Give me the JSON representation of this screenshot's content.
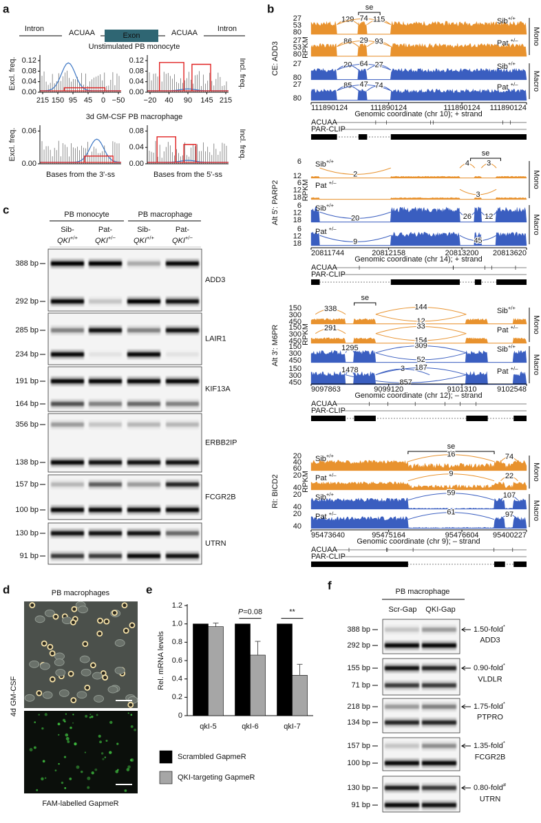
{
  "figure": {
    "a": {
      "label": "a",
      "model": [
        "Intron",
        "ACUAA",
        "Exon",
        "ACUAA",
        "Intron"
      ],
      "rows": [
        "Unstimulated PB monocyte",
        "3d GM-CSF PB macrophage"
      ],
      "y_left": "Excl. freq.",
      "y_right": "Incl. freq.",
      "yticks": [
        [
          "0.00",
          "0.04",
          "0.08",
          "0.12"
        ],
        [
          "0.00",
          "0.04",
          "0.08",
          "0.12"
        ],
        [
          "0.00",
          "0.06"
        ],
        [
          "0.00",
          "0.04",
          "0.08"
        ]
      ],
      "xticks": [
        [
          "215",
          "150",
          "95",
          "45",
          "0",
          "−50"
        ],
        [
          "−20",
          "40",
          "90",
          "145",
          "215"
        ]
      ],
      "xlabels": [
        "Bases from the 3'-ss",
        "Bases from the 5'-ss"
      ]
    },
    "b": {
      "label": "b",
      "se": "se",
      "rpkm": "RPKM",
      "acuaa": "ACUAA",
      "parclip": "PAR-CLIP",
      "groups": [
        "Mono",
        "Macro"
      ],
      "blocks": [
        {
          "title": "CE: ADD3",
          "tracks": [
            {
              "name": "Sib",
              "sup": "+/+",
              "yticks": [
                "80",
                "53",
                "27"
              ],
              "junctions": [
                "129",
                "74",
                "115"
              ]
            },
            {
              "name": "Pat ",
              "sup": "+/–",
              "yticks": [
                "80",
                "53",
                "27"
              ],
              "junctions": [
                "86",
                "29",
                "93"
              ]
            },
            {
              "name": "Sib",
              "sup": "+/+",
              "yticks": [
                "80",
                "27"
              ],
              "junctions": [
                "20",
                "64",
                "27"
              ]
            },
            {
              "name": "Pat ",
              "sup": "+/–",
              "yticks": [
                "80",
                "27"
              ],
              "junctions": [
                "85",
                "47",
                "74"
              ]
            }
          ],
          "coords": [
            "111890124",
            "111890124",
            "111890124",
            "111890124"
          ],
          "axis": "Genomic coordinate (chr 10); + strand"
        },
        {
          "title": "Alt 5': PARP2",
          "tracks": [
            {
              "name": "Sib",
              "sup": "+/+",
              "yticks": [
                "12",
                "6"
              ],
              "junctions": [
                "2",
                "4",
                "3"
              ]
            },
            {
              "name": "Pat ",
              "sup": "+/–",
              "yticks": [
                "18",
                "12",
                "6"
              ],
              "junctions": [
                "3"
              ]
            },
            {
              "name": "Sib",
              "sup": "+/+",
              "yticks": [
                "18",
                "12",
                "6"
              ],
              "junctions": [
                "20",
                "26",
                "12"
              ]
            },
            {
              "name": "Pat ",
              "sup": "+/–",
              "yticks": [
                "18",
                "12",
                "6"
              ],
              "junctions": [
                "9",
                "45"
              ]
            }
          ],
          "coords": [
            "20811744",
            "20812158",
            "20813200",
            "20813620"
          ],
          "axis": "Genomic coordinate (chr 14); + strand"
        },
        {
          "title": "Alt 3': M6PR",
          "tracks": [
            {
              "name": "Sib",
              "sup": "+/+",
              "yticks": [
                "450",
                "300",
                "150"
              ],
              "junctions": [
                "338",
                "144",
                "12"
              ]
            },
            {
              "name": "Pat ",
              "sup": "+/–",
              "yticks": [
                "450",
                "300",
                "150"
              ],
              "junctions": [
                "291",
                "33",
                "154"
              ]
            },
            {
              "name": "Sib",
              "sup": "+/+",
              "yticks": [
                "450",
                "300",
                "150"
              ],
              "junctions": [
                "1295",
                "309",
                "52"
              ]
            },
            {
              "name": "Pat ",
              "sup": "+/–",
              "yticks": [
                "450",
                "300",
                "150"
              ],
              "junctions": [
                "1478",
                "3",
                "187",
                "857"
              ]
            }
          ],
          "coords": [
            "9097863",
            "9099120",
            "9101310",
            "9102548"
          ],
          "axis": "Genomic coordinate (chr 12); – strand"
        },
        {
          "title": "RI: BICD2",
          "tracks": [
            {
              "name": "Sib",
              "sup": "+/+",
              "yticks": [
                "60",
                "40",
                "20"
              ],
              "junctions": [
                "16",
                "74"
              ]
            },
            {
              "name": "Pat ",
              "sup": "+/–",
              "yticks": [
                "40",
                "20"
              ],
              "junctions": [
                "9",
                "22"
              ]
            },
            {
              "name": "Sib",
              "sup": "+/+",
              "yticks": [
                "40",
                "20"
              ],
              "junctions": [
                "59",
                "107"
              ]
            },
            {
              "name": "Pat ",
              "sup": "+/–",
              "yticks": [
                "40",
                "20"
              ],
              "junctions": [
                "61",
                "97"
              ]
            }
          ],
          "coords": [
            "95473640",
            "95475164",
            "95476604",
            "95400227"
          ],
          "axis": "Genomic coordinate (chr 9); – strand"
        }
      ]
    },
    "c": {
      "label": "c",
      "groups": [
        "PB monocyte",
        "PB macrophage"
      ],
      "lanes": [
        {
          "line1": "Sib-",
          "gene": "QKI",
          "sup": "+/+"
        },
        {
          "line1": "Pat-",
          "gene": "QKI",
          "sup": "+/−"
        },
        {
          "line1": "Sib-",
          "gene": "QKI",
          "sup": "+/+"
        },
        {
          "line1": "Pat-",
          "gene": "QKI",
          "sup": "+/−"
        }
      ],
      "gels": [
        {
          "gene": "ADD3",
          "bands": [
            "388 bp",
            "292 bp"
          ]
        },
        {
          "gene": "LAIR1",
          "bands": [
            "285 bp",
            "234 bp"
          ]
        },
        {
          "gene": "KIF13A",
          "bands": [
            "191 bp",
            "164 bp"
          ]
        },
        {
          "gene": "ERBB2IP",
          "bands": [
            "356 bp",
            "138 bp"
          ]
        },
        {
          "gene": "FCGR2B",
          "bands": [
            "157 bp",
            "100 bp"
          ]
        },
        {
          "gene": "UTRN",
          "bands": [
            "130 bp",
            "91 bp"
          ]
        }
      ]
    },
    "d": {
      "label": "d",
      "title": "PB macrophages",
      "side": "4d GM-CSF",
      "caption": "FAM-labelled GapmeR"
    },
    "f": {
      "label": "f",
      "group": "PB macrophage",
      "lanes": [
        "Scr-Gap",
        "QKI-Gap"
      ],
      "gels": [
        {
          "gene": "ADD3",
          "bands": [
            "388 bp",
            "292 bp"
          ],
          "fold": "1.50-fold",
          "mark": "*"
        },
        {
          "gene": "VLDLR",
          "bands": [
            "155 bp",
            "71 bp"
          ],
          "fold": "0.90-fold",
          "mark": "*"
        },
        {
          "gene": "PTPRO",
          "bands": [
            "218 bp",
            "134 bp"
          ],
          "fold": "1.75-fold",
          "mark": "*"
        },
        {
          "gene": "FCGR2B",
          "bands": [
            "157 bp",
            "100 bp"
          ],
          "fold": "1.35-fold",
          "mark": "*"
        },
        {
          "gene": "UTRN",
          "bands": [
            "130 bp",
            "91 bp"
          ],
          "fold": "0.80-fold",
          "mark": "#"
        }
      ]
    }
  },
  "chart_data": {
    "type": "bar",
    "panel_label": "e",
    "ylabel": "Rel. mRNA levels",
    "categories": [
      "qkI-5",
      "qkI-6",
      "qkI-7"
    ],
    "series": [
      {
        "name": "Scrambled GapmeR",
        "color": "#000000",
        "values": [
          1,
          1,
          1
        ]
      },
      {
        "name": "QKI-targeting GapmeR",
        "color": "#a6a6a6",
        "values": [
          0.97,
          0.66,
          0.44
        ],
        "errors": [
          0.04,
          0.15,
          0.12
        ]
      }
    ],
    "ylim": [
      0,
      1.2
    ],
    "yticks": [
      0,
      0.2,
      0.4,
      0.6,
      0.8,
      {
        "value": 1,
        "label": "1.0"
      },
      1.2
    ],
    "annotations": [
      {
        "italic": "P",
        "text": "=0.08"
      },
      {
        "text": "**"
      }
    ]
  }
}
